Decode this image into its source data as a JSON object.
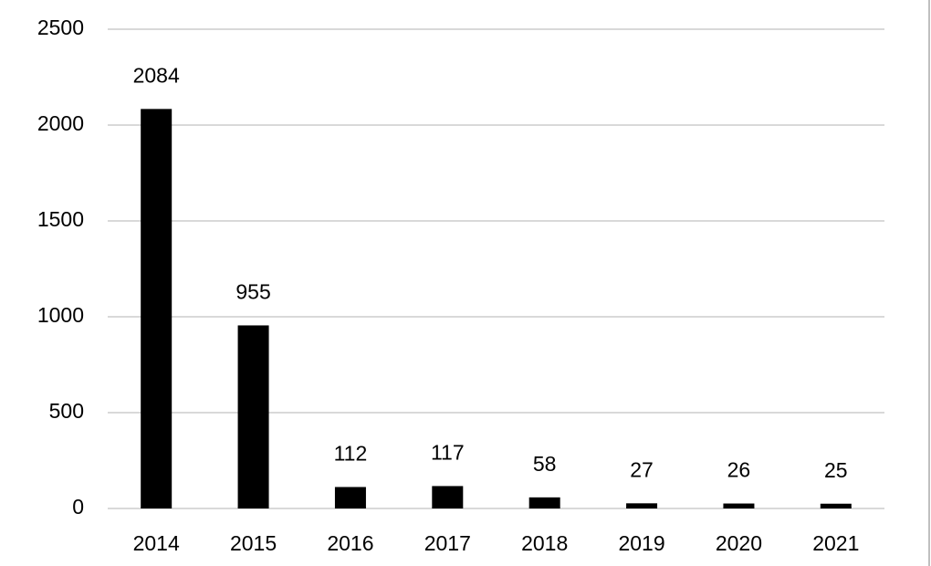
{
  "chart_data": {
    "type": "bar",
    "categories": [
      "2014",
      "2015",
      "2016",
      "2017",
      "2018",
      "2019",
      "2020",
      "2021"
    ],
    "values": [
      2084,
      955,
      112,
      117,
      58,
      27,
      26,
      25
    ],
    "color": "#000000",
    "ylim": [
      0,
      2500
    ],
    "yticks": [
      0,
      500,
      1000,
      1500,
      2000,
      2500
    ],
    "grid": true
  }
}
